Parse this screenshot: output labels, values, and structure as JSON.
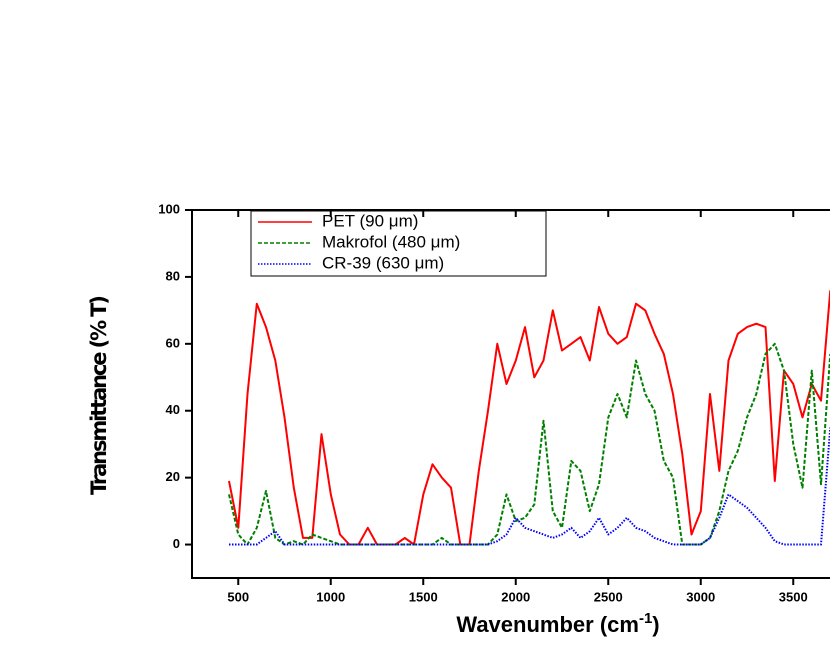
{
  "chart_data": {
    "type": "line",
    "ylabel": "Transmittance (% T)",
    "xlabel": {
      "text": "Wavenumber (cm",
      "sup": "-1",
      "end": ")"
    },
    "x": [
      450,
      500,
      550,
      600,
      650,
      700,
      750,
      800,
      850,
      900,
      950,
      1000,
      1050,
      1100,
      1150,
      1200,
      1250,
      1300,
      1350,
      1400,
      1450,
      1500,
      1550,
      1600,
      1650,
      1700,
      1750,
      1800,
      1850,
      1900,
      1950,
      2000,
      2050,
      2100,
      2150,
      2200,
      2250,
      2300,
      2350,
      2400,
      2450,
      2500,
      2550,
      2600,
      2650,
      2700,
      2750,
      2800,
      2850,
      2900,
      2950,
      3000,
      3050,
      3100,
      3150,
      3200,
      3250,
      3300,
      3350,
      3400,
      3450,
      3500,
      3550,
      3600,
      3650,
      3700
    ],
    "series": [
      {
        "name": "PET (90 μm)",
        "color": "#ff0000",
        "dash": "solid",
        "values": [
          19,
          5,
          45,
          72,
          65,
          55,
          38,
          17,
          2,
          2,
          33,
          15,
          3,
          0,
          0,
          5,
          0,
          0,
          0,
          2,
          0,
          15,
          24,
          20,
          17,
          0,
          0,
          22,
          40,
          60,
          48,
          55,
          65,
          50,
          55,
          70,
          58,
          60,
          62,
          55,
          71,
          63,
          60,
          62,
          72,
          70,
          63,
          57,
          45,
          27,
          3,
          10,
          45,
          22,
          55,
          63,
          65,
          66,
          65,
          19,
          52,
          48,
          38,
          48,
          43,
          76
        ]
      },
      {
        "name": "Makrofol (480 μm)",
        "color": "#008000",
        "dash": "dashed",
        "values": [
          15,
          3,
          0,
          5,
          16,
          2,
          0,
          1,
          0,
          3,
          2,
          1,
          0,
          0,
          0,
          0,
          0,
          0,
          0,
          0,
          0,
          0,
          0,
          2,
          0,
          0,
          0,
          0,
          0,
          3,
          15,
          7,
          8,
          12,
          37,
          10,
          5,
          25,
          22,
          10,
          18,
          38,
          45,
          38,
          55,
          45,
          40,
          25,
          20,
          0,
          0,
          0,
          2,
          10,
          22,
          28,
          38,
          45,
          57,
          60,
          52,
          30,
          17,
          52,
          18,
          57
        ]
      },
      {
        "name": "CR-39 (630 μm)",
        "color": "#0000ff",
        "dash": "dotted",
        "values": [
          0,
          0,
          0,
          0,
          2,
          4,
          0,
          0,
          0,
          0,
          0,
          0,
          0,
          0,
          0,
          0,
          0,
          0,
          0,
          0,
          0,
          0,
          0,
          0,
          0,
          0,
          0,
          0,
          0,
          1,
          3,
          8,
          5,
          4,
          3,
          2,
          3,
          5,
          2,
          4,
          8,
          3,
          5,
          8,
          5,
          4,
          2,
          1,
          0,
          0,
          0,
          0,
          2,
          8,
          15,
          13,
          11,
          8,
          5,
          1,
          0,
          0,
          0,
          0,
          0,
          35
        ]
      }
    ],
    "xlim": [
      250,
      3720
    ],
    "ylim": [
      -10,
      100
    ],
    "xticks": [
      500,
      1000,
      1500,
      2000,
      2500,
      3000,
      3500
    ],
    "yticks": [
      0,
      20,
      40,
      60,
      80,
      100
    ]
  }
}
